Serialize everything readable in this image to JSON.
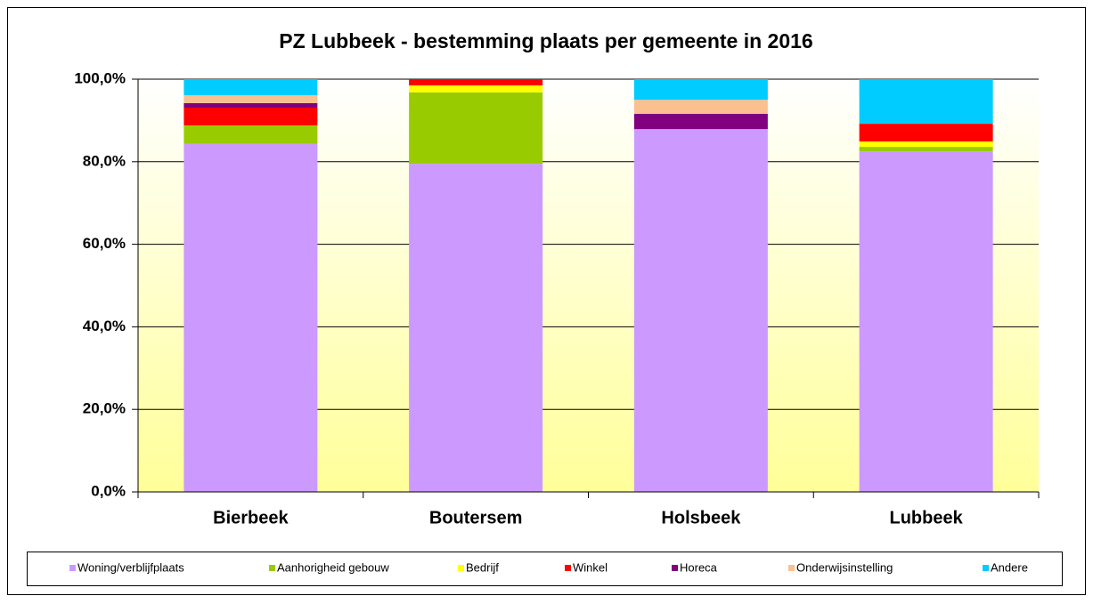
{
  "chart_data": {
    "type": "stacked_bar",
    "title": "PZ Lubbeek  - bestemming plaats per gemeente in 2016",
    "categories": [
      "Bierbeek",
      "Boutersem",
      "Holsbeek",
      "Lubbeek"
    ],
    "series": [
      {
        "name": "Woning/verblijfplaats",
        "color": "#cc99ff",
        "values": [
          84.3,
          79.5,
          87.9,
          82.5
        ]
      },
      {
        "name": "Aanhorigheid gebouw",
        "color": "#99cc00",
        "values": [
          4.5,
          17.3,
          0,
          1.1
        ]
      },
      {
        "name": "Bedrijf",
        "color": "#ffff00",
        "values": [
          0,
          1.7,
          0,
          1.3
        ]
      },
      {
        "name": "Winkel",
        "color": "#ff0000",
        "values": [
          4.3,
          1.5,
          0,
          4.3
        ]
      },
      {
        "name": "Horeca",
        "color": "#800080",
        "values": [
          1.1,
          0,
          3.7,
          0
        ]
      },
      {
        "name": "Onderwijsinstelling",
        "color": "#fac090",
        "values": [
          1.9,
          0,
          3.4,
          0
        ]
      },
      {
        "name": "Andere",
        "color": "#00ccff",
        "values": [
          3.9,
          0,
          5.0,
          10.8
        ]
      }
    ],
    "ylim": [
      0,
      100
    ],
    "yticks": [
      {
        "value": 0,
        "label": "0,0%"
      },
      {
        "value": 20,
        "label": "20,0%"
      },
      {
        "value": 40,
        "label": "40,0%"
      },
      {
        "value": 60,
        "label": "60,0%"
      },
      {
        "value": 80,
        "label": "80,0%"
      },
      {
        "value": 100,
        "label": "100,0%"
      }
    ],
    "grid": true,
    "legend": "bottom"
  }
}
